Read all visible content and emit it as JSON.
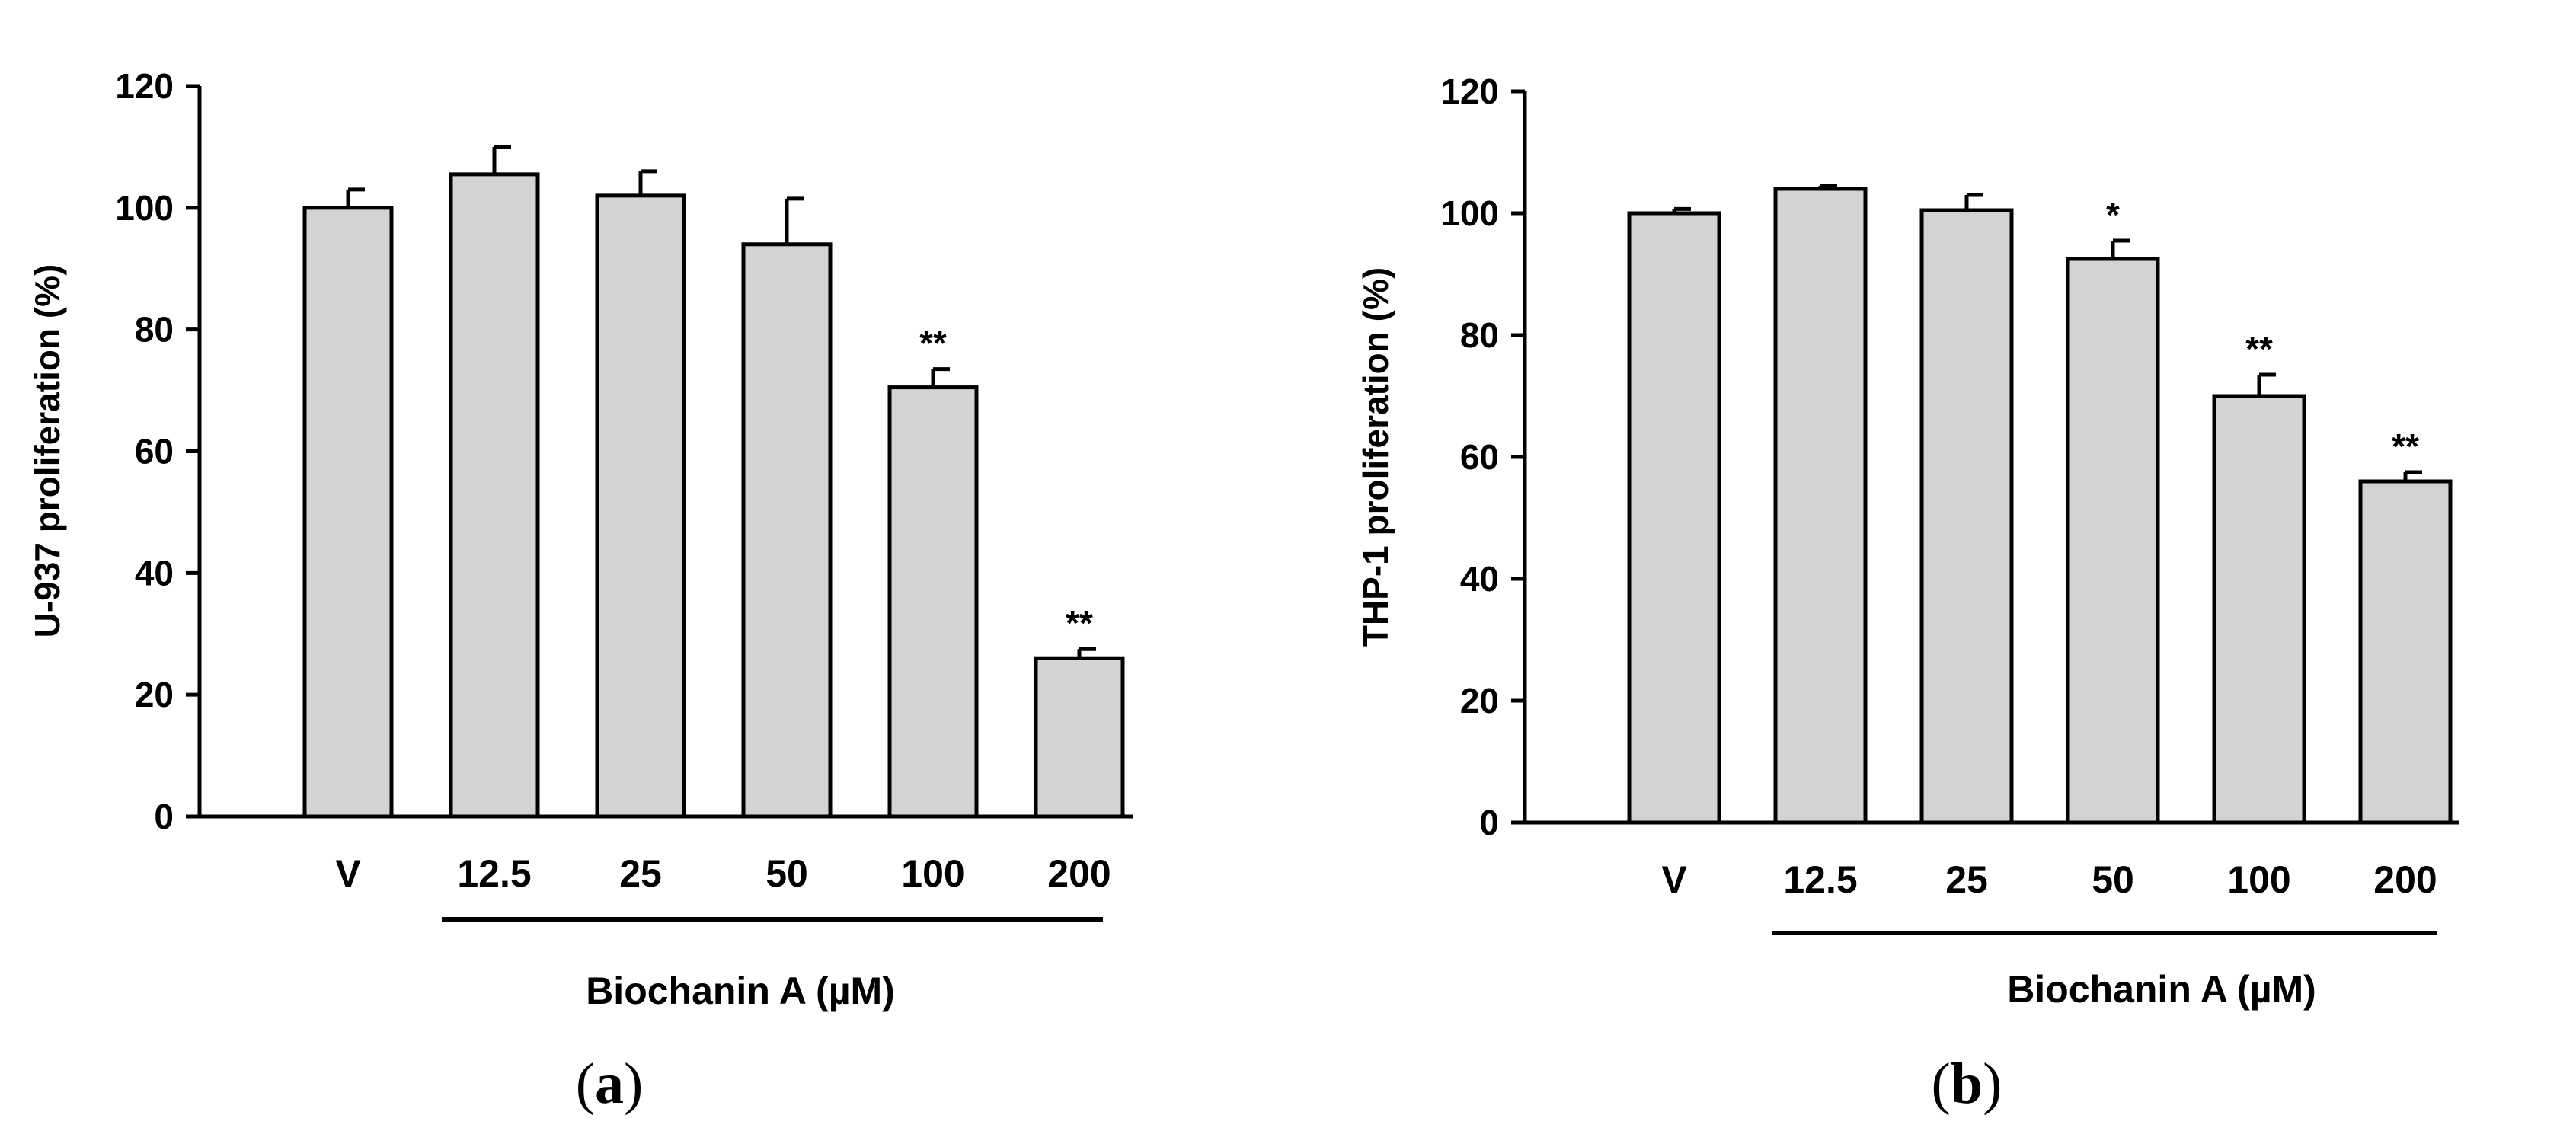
{
  "chart_data": [
    {
      "type": "bar",
      "panel_label": "a",
      "categories": [
        "V",
        "12.5",
        "25",
        "50",
        "100",
        "200"
      ],
      "values": [
        100,
        105.5,
        102,
        94,
        70.5,
        26
      ],
      "errors": [
        3,
        4.5,
        4,
        7.5,
        3,
        1.5
      ],
      "significance": [
        "",
        "",
        "",
        "",
        "**",
        "**"
      ],
      "xlabel": "Biochanin A (µM)",
      "ylabel": "U-937 proliferation (%)",
      "ylim": [
        0,
        120
      ],
      "yticks": [
        0,
        20,
        40,
        60,
        80,
        100,
        120
      ],
      "bar_color": "#d3d3d3",
      "treatment_bracket_categories": [
        "12.5",
        "200"
      ]
    },
    {
      "type": "bar",
      "panel_label": "b",
      "categories": [
        "V",
        "12.5",
        "25",
        "50",
        "100",
        "200"
      ],
      "values": [
        100,
        104,
        100.5,
        92.5,
        70,
        56
      ],
      "errors": [
        0.7,
        0.5,
        2.5,
        3,
        3.5,
        1.5
      ],
      "significance": [
        "",
        "",
        "",
        "*",
        "**",
        "**"
      ],
      "xlabel": "Biochanin A (µM)",
      "ylabel": "THP-1 proliferation (%)",
      "ylim": [
        0,
        120
      ],
      "yticks": [
        0,
        20,
        40,
        60,
        80,
        100,
        120
      ],
      "bar_color": "#d3d3d3",
      "treatment_bracket_categories": [
        "12.5",
        "200"
      ]
    }
  ]
}
